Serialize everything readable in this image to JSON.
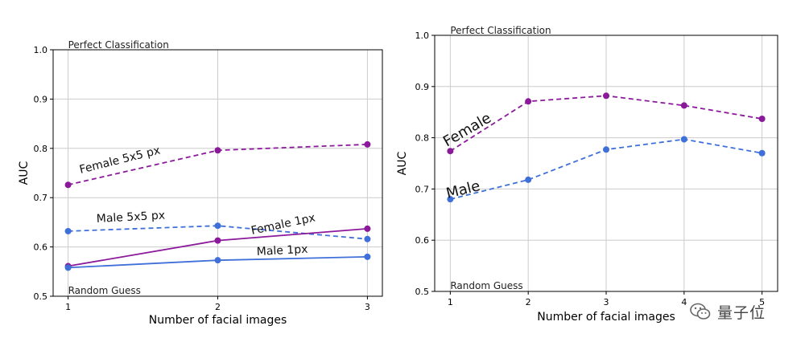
{
  "colors": {
    "female": "#8b1a9b",
    "male": "#3f6fd8",
    "grid": "#cccccc",
    "axis": "#000000"
  },
  "chart_data": [
    {
      "type": "line",
      "title": "",
      "xlabel": "Number of facial images",
      "ylabel": "AUC",
      "ylim": [
        0.5,
        1.0
      ],
      "yticks": [
        "0.5",
        "0.6",
        "0.7",
        "0.8",
        "0.9",
        "1.0"
      ],
      "x": [
        1,
        2,
        3
      ],
      "xticks": [
        "1",
        "2",
        "3"
      ],
      "grid": true,
      "reference_labels": {
        "top": "Perfect Classification",
        "bottom": "Random Guess"
      },
      "series": [
        {
          "name": "Female 5x5 px",
          "style": "dashed",
          "color_key": "female",
          "values": [
            0.726,
            0.796,
            0.808
          ]
        },
        {
          "name": "Male 5x5 px",
          "style": "dashed",
          "color_key": "male",
          "values": [
            0.632,
            0.643,
            0.616
          ]
        },
        {
          "name": "Female 1px",
          "style": "solid",
          "color_key": "female",
          "values": [
            0.561,
            0.613,
            0.637
          ]
        },
        {
          "name": "Male 1px",
          "style": "solid",
          "color_key": "male",
          "values": [
            0.558,
            0.573,
            0.58
          ]
        }
      ]
    },
    {
      "type": "line",
      "title": "",
      "xlabel": "Number of facial images",
      "ylabel": "AUC",
      "ylim": [
        0.5,
        1.0
      ],
      "yticks": [
        "0.5",
        "0.6",
        "0.7",
        "0.8",
        "0.9",
        "1.0"
      ],
      "x": [
        1,
        2,
        3,
        4,
        5
      ],
      "xticks": [
        "1",
        "2",
        "3",
        "4",
        "5"
      ],
      "grid": true,
      "reference_labels": {
        "top": "Perfect Classification",
        "bottom": "Random Guess"
      },
      "series": [
        {
          "name": "Female",
          "style": "dashed",
          "color_key": "female",
          "values": [
            0.774,
            0.871,
            0.882,
            0.863,
            0.837
          ]
        },
        {
          "name": "Male",
          "style": "dashed",
          "color_key": "male",
          "values": [
            0.68,
            0.718,
            0.777,
            0.797,
            0.77
          ]
        }
      ]
    }
  ],
  "watermark": {
    "text": "量子位",
    "icon": "wechat-icon"
  }
}
